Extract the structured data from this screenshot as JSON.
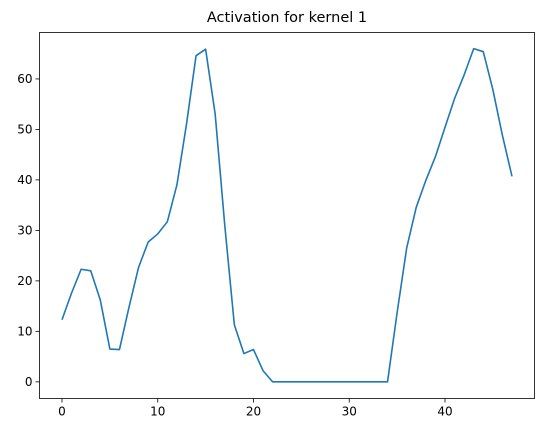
{
  "chart_data": {
    "type": "line",
    "title": "Activation for kernel 1",
    "xlabel": "",
    "ylabel": "",
    "xlim": [
      -2.35,
      49.35
    ],
    "ylim": [
      -3.3,
      69.2
    ],
    "xticks": [
      0,
      10,
      20,
      30,
      40
    ],
    "yticks": [
      0,
      10,
      20,
      30,
      40,
      50,
      60
    ],
    "grid": false,
    "line_color": "#1f77b4",
    "series": [
      {
        "x": [
          0,
          1,
          2,
          3,
          4,
          5,
          6,
          7,
          8,
          9,
          10,
          11,
          12,
          13,
          14,
          15,
          16,
          17,
          18,
          19,
          20,
          21,
          22,
          23,
          24,
          25,
          26,
          27,
          28,
          29,
          30,
          31,
          32,
          33,
          34,
          35,
          36,
          37,
          38,
          39,
          40,
          41,
          42,
          43,
          44,
          45,
          46,
          47
        ],
        "values": [
          12.3,
          17.6,
          22.3,
          22.0,
          16.2,
          6.5,
          6.4,
          14.8,
          22.7,
          27.7,
          29.3,
          31.7,
          39.0,
          51.0,
          64.6,
          65.9,
          53.0,
          31.0,
          11.3,
          5.6,
          6.4,
          2.2,
          0,
          0,
          0,
          0,
          0,
          0,
          0,
          0,
          0,
          0,
          0,
          0,
          0,
          13.7,
          26.5,
          34.6,
          39.9,
          44.6,
          50.4,
          56.1,
          60.8,
          66.0,
          65.4,
          57.9,
          48.8,
          40.7
        ]
      }
    ]
  }
}
